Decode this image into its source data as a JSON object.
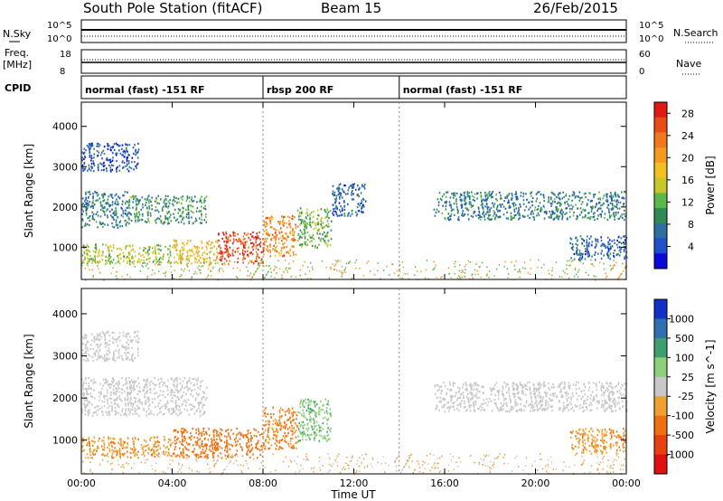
{
  "header": {
    "station": "South Pole Station (fitACF)",
    "beam": "Beam 15",
    "date": "26/Feb/2015"
  },
  "left_labels": {
    "nsky": "N.Sky",
    "freq_line1": "Freq.",
    "freq_line2": "[MHz]",
    "cpid": "CPID"
  },
  "right_labels": {
    "nsearch": "N.Search",
    "nave": "Nave"
  },
  "top_axes": {
    "noise_ticks_left": [
      "10^5",
      "10^0"
    ],
    "noise_ticks_right": [
      "10^5",
      "10^0"
    ],
    "freq_ticks_left": [
      "18",
      "8"
    ],
    "nave_ticks_right": [
      "60",
      "0"
    ]
  },
  "cpid_segments": [
    {
      "label": "normal (fast) -151 RF",
      "start_hour": 0,
      "end_hour": 8
    },
    {
      "label": "rbsp 200 RF",
      "start_hour": 8,
      "end_hour": 14
    },
    {
      "label": "normal (fast) -151 RF",
      "start_hour": 14,
      "end_hour": 24
    }
  ],
  "x_axis": {
    "label": "Time UT",
    "ticks": [
      "00:00",
      "04:00",
      "08:00",
      "12:00",
      "16:00",
      "20:00",
      "00:00"
    ],
    "range_hours": [
      0,
      24
    ]
  },
  "chart_data": [
    {
      "type": "heatmap",
      "panel": "power",
      "ylabel": "Slant Range [km]",
      "yticks": [
        1000,
        2000,
        3000,
        4000
      ],
      "ylim": [
        200,
        4600
      ],
      "colorbar": {
        "label": "Power [dB]",
        "ticks": [
          4,
          8,
          12,
          16,
          20,
          24,
          28
        ],
        "range": [
          0,
          30
        ],
        "colors": [
          "#0a0ad8",
          "#1e50c8",
          "#2e6ea0",
          "#2f8a55",
          "#5cb84a",
          "#c7c728",
          "#f2c020",
          "#f59a20",
          "#f0781e",
          "#ea4c18",
          "#e01a10"
        ]
      },
      "regions": [
        {
          "t_start": 0.0,
          "t_end": 2.0,
          "range_min": 1500,
          "range_max": 2400,
          "value": 8
        },
        {
          "t_start": 2.0,
          "t_end": 5.5,
          "range_min": 1600,
          "range_max": 2300,
          "value": 10
        },
        {
          "t_start": 0.0,
          "t_end": 2.5,
          "range_min": 2900,
          "range_max": 3600,
          "value": 5
        },
        {
          "t_start": 0.0,
          "t_end": 4.0,
          "range_min": 600,
          "range_max": 1100,
          "value": 14
        },
        {
          "t_start": 4.0,
          "t_end": 6.0,
          "range_min": 600,
          "range_max": 1200,
          "value": 18
        },
        {
          "t_start": 6.0,
          "t_end": 8.0,
          "range_min": 600,
          "range_max": 1400,
          "value": 26
        },
        {
          "t_start": 8.0,
          "t_end": 9.5,
          "range_min": 800,
          "range_max": 1800,
          "value": 22
        },
        {
          "t_start": 9.5,
          "t_end": 11.0,
          "range_min": 1000,
          "range_max": 2000,
          "value": 12
        },
        {
          "t_start": 11.0,
          "t_end": 12.5,
          "range_min": 1800,
          "range_max": 2600,
          "value": 6
        },
        {
          "t_start": 15.5,
          "t_end": 24.0,
          "range_min": 1700,
          "range_max": 2400,
          "value": 8
        },
        {
          "t_start": 21.5,
          "t_end": 24.0,
          "range_min": 700,
          "range_max": 1300,
          "value": 6
        }
      ]
    },
    {
      "type": "heatmap",
      "panel": "velocity",
      "ylabel": "Slant Range [km]",
      "yticks": [
        1000,
        2000,
        3000,
        4000
      ],
      "ylim": [
        200,
        4600
      ],
      "colorbar": {
        "label": "Velocity [m s^-1]",
        "ticks": [
          1000,
          500,
          100,
          25,
          -25,
          -100,
          -500,
          -1000
        ],
        "range": [
          -1000,
          1000
        ],
        "colors": [
          "#1030c8",
          "#2e70b0",
          "#3f9e70",
          "#8ed07a",
          "#c8c8c8",
          "#f0a030",
          "#f07010",
          "#e84010",
          "#e01010"
        ]
      },
      "regions": [
        {
          "t_start": 0.0,
          "t_end": 5.5,
          "range_min": 1600,
          "range_max": 2500,
          "value": 0
        },
        {
          "t_start": 0.0,
          "t_end": 2.5,
          "range_min": 2900,
          "range_max": 3600,
          "value": 0
        },
        {
          "t_start": 0.0,
          "t_end": 4.0,
          "range_min": 600,
          "range_max": 1100,
          "value": -300
        },
        {
          "t_start": 4.0,
          "t_end": 8.0,
          "range_min": 600,
          "range_max": 1300,
          "value": -400
        },
        {
          "t_start": 8.0,
          "t_end": 9.5,
          "range_min": 800,
          "range_max": 1800,
          "value": -350
        },
        {
          "t_start": 9.5,
          "t_end": 11.0,
          "range_min": 1000,
          "range_max": 2000,
          "value": 300
        },
        {
          "t_start": 15.5,
          "t_end": 24.0,
          "range_min": 1700,
          "range_max": 2400,
          "value": 0
        },
        {
          "t_start": 21.5,
          "t_end": 24.0,
          "range_min": 700,
          "range_max": 1300,
          "value": -300
        }
      ]
    }
  ]
}
